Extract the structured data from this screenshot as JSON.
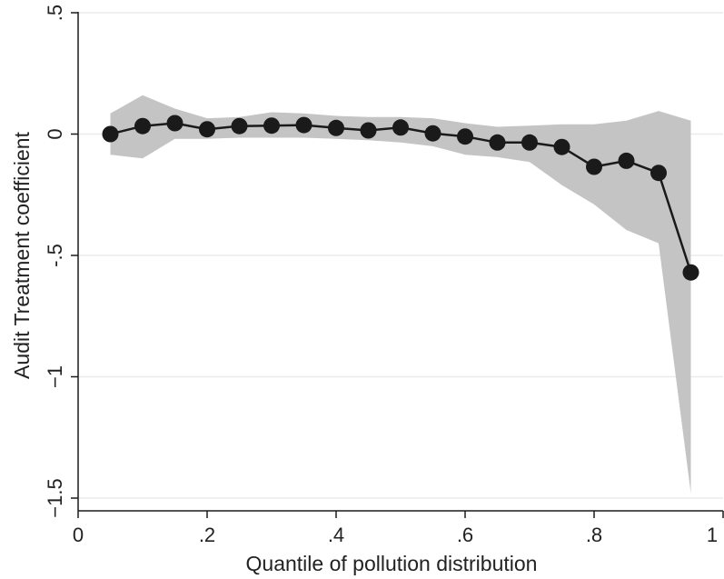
{
  "chart_data": {
    "type": "line",
    "title": "",
    "xlabel": "Quantile of pollution distribution",
    "ylabel": "Audit Treatment coefficient",
    "xlim": [
      0,
      1
    ],
    "ylim": [
      -1.5,
      0.5
    ],
    "x_ticks": [
      {
        "value": 0,
        "label": "0"
      },
      {
        "value": 0.2,
        "label": ".2"
      },
      {
        "value": 0.4,
        "label": ".4"
      },
      {
        "value": 0.6,
        "label": ".6"
      },
      {
        "value": 0.8,
        "label": ".8"
      },
      {
        "value": 1,
        "label": "1"
      }
    ],
    "y_ticks": [
      {
        "value": 0.5,
        "label": ".5"
      },
      {
        "value": 0,
        "label": "0"
      },
      {
        "value": -0.5,
        "label": "-.5"
      },
      {
        "value": -1,
        "label": "−1"
      },
      {
        "value": -1.5,
        "label": "−1.5"
      }
    ],
    "grid": true,
    "series": [
      {
        "x": [
          0.05,
          0.1,
          0.15,
          0.2,
          0.25,
          0.3,
          0.35,
          0.4,
          0.45,
          0.5,
          0.55,
          0.6,
          0.65,
          0.7,
          0.75,
          0.8,
          0.85,
          0.9,
          0.95
        ],
        "y": [
          0.0,
          0.033,
          0.045,
          0.02,
          0.033,
          0.035,
          0.037,
          0.025,
          0.015,
          0.027,
          0.003,
          -0.01,
          -0.035,
          -0.035,
          -0.053,
          -0.135,
          -0.11,
          -0.16,
          -0.57
        ],
        "ci_lower": [
          -0.085,
          -0.1,
          -0.02,
          -0.02,
          -0.015,
          -0.015,
          -0.015,
          -0.02,
          -0.025,
          -0.035,
          -0.05,
          -0.085,
          -0.095,
          -0.115,
          -0.21,
          -0.29,
          -0.395,
          -0.45,
          -1.48
        ],
        "ci_upper": [
          0.085,
          0.16,
          0.105,
          0.065,
          0.07,
          0.09,
          0.085,
          0.075,
          0.07,
          0.07,
          0.065,
          0.045,
          0.03,
          0.035,
          0.04,
          0.04,
          0.055,
          0.095,
          0.055
        ]
      }
    ],
    "colors": {
      "line": "#1a1a1a",
      "marker": "#1a1a1a",
      "ci_band": "#c4c4c4",
      "grid": "#ebebeb",
      "axis": "#1a1a1a"
    }
  }
}
